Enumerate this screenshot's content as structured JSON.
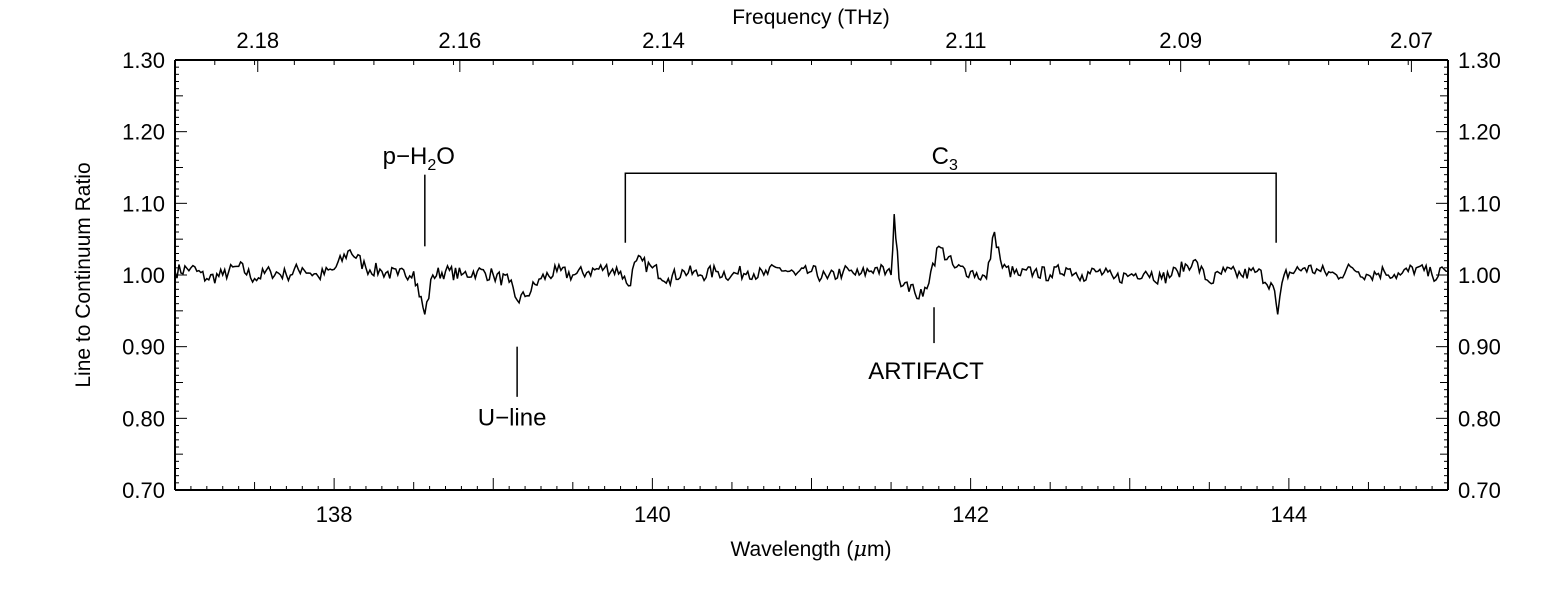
{
  "chart_data": {
    "type": "line",
    "xlabel": "Wavelength (μm)",
    "xlabel_parts": {
      "pre": "Wavelength (",
      "mu": "μ",
      "post": "m)"
    },
    "ylabel": "Line to Continuum Ratio",
    "top_xlabel": "Frequency (THz)",
    "xlim": [
      137.0,
      145.0
    ],
    "ylim": [
      0.7,
      1.3
    ],
    "x_ticks": [
      "138",
      "140",
      "142",
      "144"
    ],
    "y_ticks": [
      "0.70",
      "0.80",
      "0.90",
      "1.00",
      "1.10",
      "1.20",
      "1.30"
    ],
    "top_ticks": [
      "2.18",
      "2.16",
      "2.14",
      "2.11",
      "2.09",
      "2.07"
    ],
    "top_tick_wavelengths": [
      137.52,
      138.79,
      140.07,
      141.97,
      143.32,
      144.77
    ],
    "series": [
      {
        "values": [
          [
            137.0,
            1.005
          ],
          [
            137.1,
            1.01
          ],
          [
            137.2,
            0.995
          ],
          [
            137.3,
            1.0
          ],
          [
            137.4,
            1.012
          ],
          [
            137.5,
            0.995
          ],
          [
            137.6,
            1.005
          ],
          [
            137.7,
            1.0
          ],
          [
            137.8,
            1.01
          ],
          [
            137.9,
            0.998
          ],
          [
            138.0,
            1.008
          ],
          [
            138.1,
            1.035
          ],
          [
            138.2,
            1.01
          ],
          [
            138.3,
            1.005
          ],
          [
            138.4,
            1.0
          ],
          [
            138.5,
            1.005
          ],
          [
            138.57,
            0.945
          ],
          [
            138.62,
            1.0
          ],
          [
            138.7,
            1.005
          ],
          [
            138.8,
            1.0
          ],
          [
            138.9,
            1.005
          ],
          [
            139.0,
            1.0
          ],
          [
            139.1,
            0.99
          ],
          [
            139.15,
            0.965
          ],
          [
            139.2,
            0.97
          ],
          [
            139.3,
            0.995
          ],
          [
            139.4,
            1.005
          ],
          [
            139.5,
            1.0
          ],
          [
            139.6,
            1.005
          ],
          [
            139.7,
            1.01
          ],
          [
            139.8,
            1.005
          ],
          [
            139.85,
            0.985
          ],
          [
            139.9,
            1.02
          ],
          [
            140.0,
            1.01
          ],
          [
            140.1,
            0.995
          ],
          [
            140.2,
            1.005
          ],
          [
            140.3,
            1.0
          ],
          [
            140.4,
            1.005
          ],
          [
            140.5,
            1.0
          ],
          [
            140.6,
            1.005
          ],
          [
            140.7,
            1.0
          ],
          [
            140.8,
            1.01
          ],
          [
            140.9,
            1.0
          ],
          [
            141.0,
            1.005
          ],
          [
            141.1,
            0.995
          ],
          [
            141.2,
            1.005
          ],
          [
            141.3,
            1.0
          ],
          [
            141.4,
            1.01
          ],
          [
            141.5,
            1.0
          ],
          [
            141.52,
            1.085
          ],
          [
            141.55,
            0.995
          ],
          [
            141.6,
            0.99
          ],
          [
            141.65,
            0.975
          ],
          [
            141.7,
            0.97
          ],
          [
            141.75,
            1.005
          ],
          [
            141.8,
            1.04
          ],
          [
            141.9,
            1.01
          ],
          [
            142.0,
            1.005
          ],
          [
            142.1,
            0.995
          ],
          [
            142.15,
            1.06
          ],
          [
            142.2,
            1.01
          ],
          [
            142.3,
            1.0
          ],
          [
            142.4,
            1.005
          ],
          [
            142.5,
            1.0
          ],
          [
            142.6,
            1.01
          ],
          [
            142.7,
            1.0
          ],
          [
            142.8,
            1.005
          ],
          [
            142.9,
            0.995
          ],
          [
            143.0,
            1.0
          ],
          [
            143.1,
            1.005
          ],
          [
            143.2,
            0.995
          ],
          [
            143.3,
            1.005
          ],
          [
            143.4,
            1.02
          ],
          [
            143.5,
            0.99
          ],
          [
            143.6,
            1.005
          ],
          [
            143.7,
            1.0
          ],
          [
            143.8,
            1.005
          ],
          [
            143.9,
            0.985
          ],
          [
            143.93,
            0.945
          ],
          [
            143.97,
            1.0
          ],
          [
            144.1,
            1.01
          ],
          [
            144.2,
            1.005
          ],
          [
            144.3,
            1.0
          ],
          [
            144.4,
            1.01
          ],
          [
            144.5,
            1.0
          ],
          [
            144.6,
            1.005
          ],
          [
            144.7,
            1.0
          ],
          [
            144.8,
            1.01
          ],
          [
            144.9,
            1.0
          ],
          [
            145.0,
            1.005
          ]
        ]
      }
    ],
    "annotations": {
      "pH2O": {
        "label_p": "p−H",
        "label_sub": "2",
        "label_o": "O",
        "x": 138.57
      },
      "uline": {
        "label": "U−line",
        "x": 139.15
      },
      "c3": {
        "label": "C",
        "label_sub": "3",
        "x_start": 139.83,
        "x_end": 143.92
      },
      "artifact": {
        "label": "ARTIFACT",
        "x": 141.77
      }
    }
  }
}
